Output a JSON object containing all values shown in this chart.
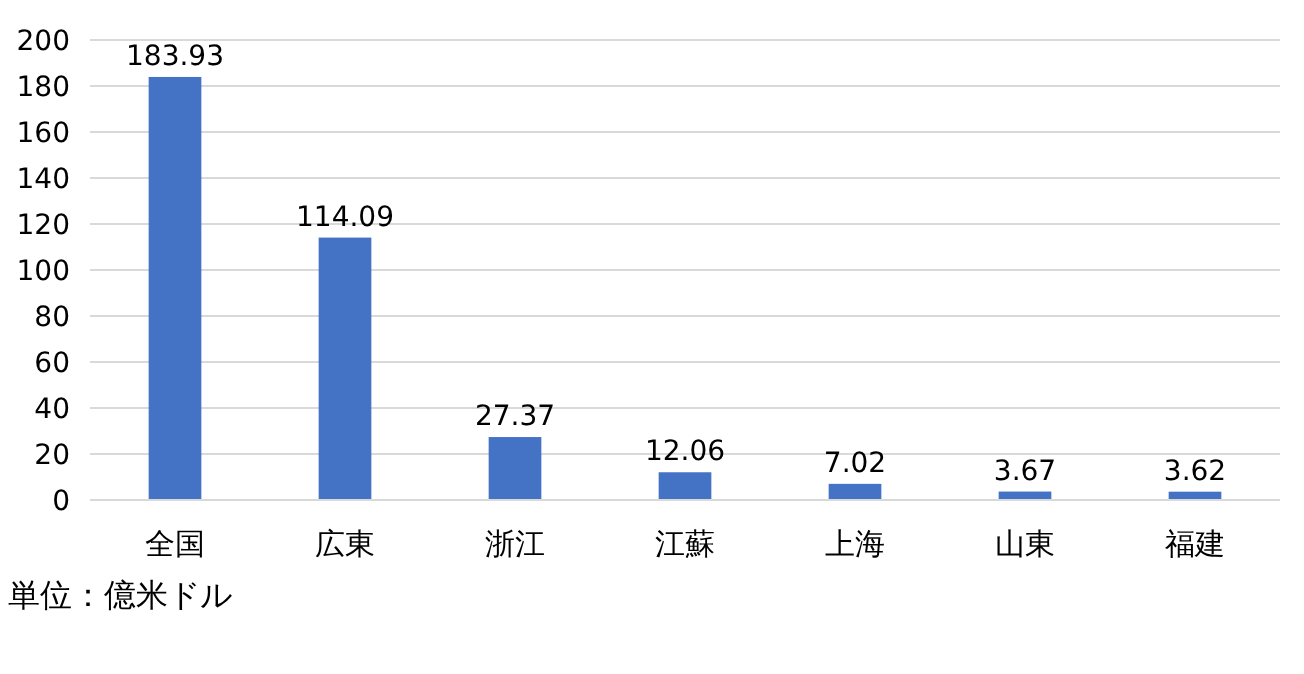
{
  "chart_data": {
    "type": "bar",
    "categories": [
      "全国",
      "広東",
      "浙江",
      "江蘇",
      "上海",
      "山東",
      "福建"
    ],
    "values": [
      183.93,
      114.09,
      27.37,
      12.06,
      7.02,
      3.67,
      3.62
    ],
    "color": "#4472c4",
    "ylim": [
      0,
      200
    ],
    "yticks": [
      0,
      20,
      40,
      60,
      80,
      100,
      120,
      140,
      160,
      180,
      200
    ],
    "grid": "y",
    "data_labels": true,
    "annotations": [
      "単位：億米ドル"
    ]
  }
}
